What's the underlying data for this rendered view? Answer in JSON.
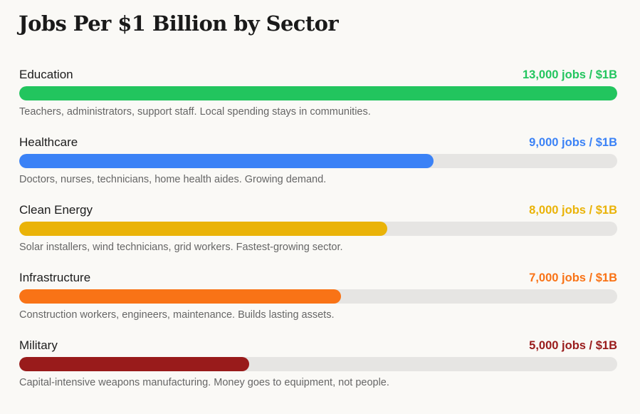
{
  "title": "Jobs Per $1 Billion by Sector",
  "chart_data": {
    "type": "bar",
    "orientation": "horizontal",
    "title": "Jobs Per $1 Billion by Sector",
    "xlim": [
      0,
      13000
    ],
    "categories": [
      "Education",
      "Healthcare",
      "Clean Energy",
      "Infrastructure",
      "Military"
    ],
    "values": [
      13000,
      9000,
      8000,
      7000,
      5000
    ],
    "items": [
      {
        "name": "Education",
        "value": 13000,
        "value_label": "13,000 jobs / $1B",
        "description": "Teachers, administrators, support staff. Local spending stays in communities.",
        "color": "#22c55e"
      },
      {
        "name": "Healthcare",
        "value": 9000,
        "value_label": "9,000 jobs / $1B",
        "description": "Doctors, nurses, technicians, home health aides. Growing demand.",
        "color": "#3b82f6"
      },
      {
        "name": "Clean Energy",
        "value": 8000,
        "value_label": "8,000 jobs / $1B",
        "description": "Solar installers, wind technicians, grid workers. Fastest-growing sector.",
        "color": "#eab308"
      },
      {
        "name": "Infrastructure",
        "value": 7000,
        "value_label": "7,000 jobs / $1B",
        "description": "Construction workers, engineers, maintenance. Builds lasting assets.",
        "color": "#f97316"
      },
      {
        "name": "Military",
        "value": 5000,
        "value_label": "5,000 jobs / $1B",
        "description": "Capital-intensive weapons manufacturing. Money goes to equipment, not people.",
        "color": "#991b1b"
      }
    ],
    "track_color": "#e6e5e3"
  }
}
